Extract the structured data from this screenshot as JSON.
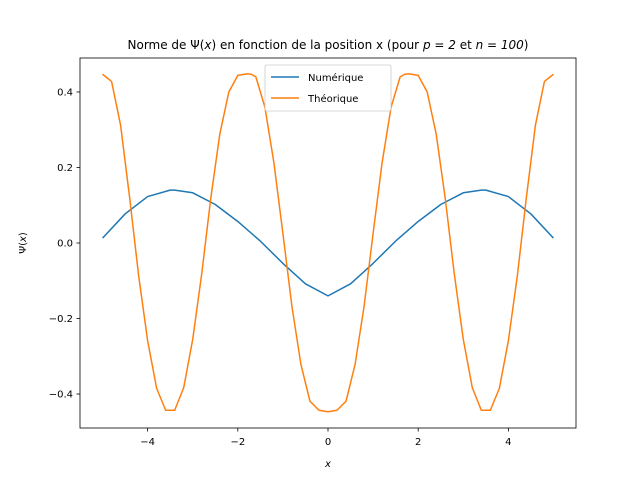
{
  "chart_data": {
    "type": "line",
    "title_prefix": "Norme de Ψ(",
    "title_var": "x",
    "title_suffix": ") en fonction de la position x (pour ",
    "title_p": "p = 2",
    "title_and": " et ",
    "title_n": "n = 100",
    "title_end": ")",
    "xlabel": "x",
    "ylabel_prefix": "Ψ(",
    "ylabel_var": "x",
    "ylabel_suffix": ")",
    "xlim": [
      -5.5,
      5.5
    ],
    "ylim": [
      -0.49,
      0.49
    ],
    "xticks": [
      -4,
      -2,
      0,
      2,
      4
    ],
    "xtick_labels": [
      "−4",
      "−2",
      "0",
      "2",
      "4"
    ],
    "yticks": [
      -0.4,
      -0.2,
      0.0,
      0.2,
      0.4
    ],
    "ytick_labels": [
      "−0.4",
      "−0.2",
      "0.0",
      "0.2",
      "0.4"
    ],
    "grid": false,
    "legend_position": "top-center",
    "series": [
      {
        "name": "Numérique",
        "color": "#1f77b4",
        "x": [
          -5.0,
          -4.5,
          -4.0,
          -3.5,
          -3.4,
          -3.0,
          -2.5,
          -2.0,
          -1.5,
          -1.0,
          -0.5,
          0.0,
          0.5,
          1.0,
          1.5,
          2.0,
          2.5,
          3.0,
          3.4,
          3.5,
          4.0,
          4.5,
          5.0
        ],
        "y": [
          0.013,
          0.077,
          0.123,
          0.14,
          0.14,
          0.133,
          0.102,
          0.057,
          0.005,
          -0.054,
          -0.108,
          -0.14,
          -0.108,
          -0.054,
          0.005,
          0.057,
          0.102,
          0.133,
          0.14,
          0.14,
          0.123,
          0.077,
          0.013
        ]
      },
      {
        "name": "Théorique",
        "color": "#ff7f0e",
        "x": [
          -5.0,
          -4.8,
          -4.6,
          -4.4,
          -4.2,
          -4.0,
          -3.8,
          -3.6,
          -3.4,
          -3.2,
          -3.0,
          -2.8,
          -2.6,
          -2.4,
          -2.2,
          -2.0,
          -1.8,
          -1.7,
          -1.6,
          -1.4,
          -1.2,
          -1.0,
          -0.8,
          -0.6,
          -0.4,
          -0.2,
          0.0,
          0.2,
          0.4,
          0.6,
          0.8,
          1.0,
          1.2,
          1.4,
          1.6,
          1.7,
          1.8,
          2.0,
          2.2,
          2.4,
          2.6,
          2.8,
          3.0,
          3.2,
          3.4,
          3.6,
          3.8,
          4.0,
          4.2,
          4.4,
          4.6,
          4.8,
          5.0
        ],
        "y": [
          0.447,
          0.428,
          0.312,
          0.121,
          -0.086,
          -0.259,
          -0.385,
          -0.443,
          -0.443,
          -0.383,
          -0.255,
          -0.081,
          0.118,
          0.288,
          0.4,
          0.444,
          0.448,
          0.447,
          0.44,
          0.36,
          0.213,
          0.025,
          -0.168,
          -0.322,
          -0.419,
          -0.443,
          -0.447,
          -0.443,
          -0.419,
          -0.322,
          -0.168,
          0.025,
          0.213,
          0.36,
          0.44,
          0.447,
          0.448,
          0.444,
          0.4,
          0.288,
          0.118,
          -0.081,
          -0.255,
          -0.383,
          -0.443,
          -0.443,
          -0.385,
          -0.259,
          -0.086,
          0.121,
          0.312,
          0.428,
          0.447
        ]
      }
    ]
  }
}
